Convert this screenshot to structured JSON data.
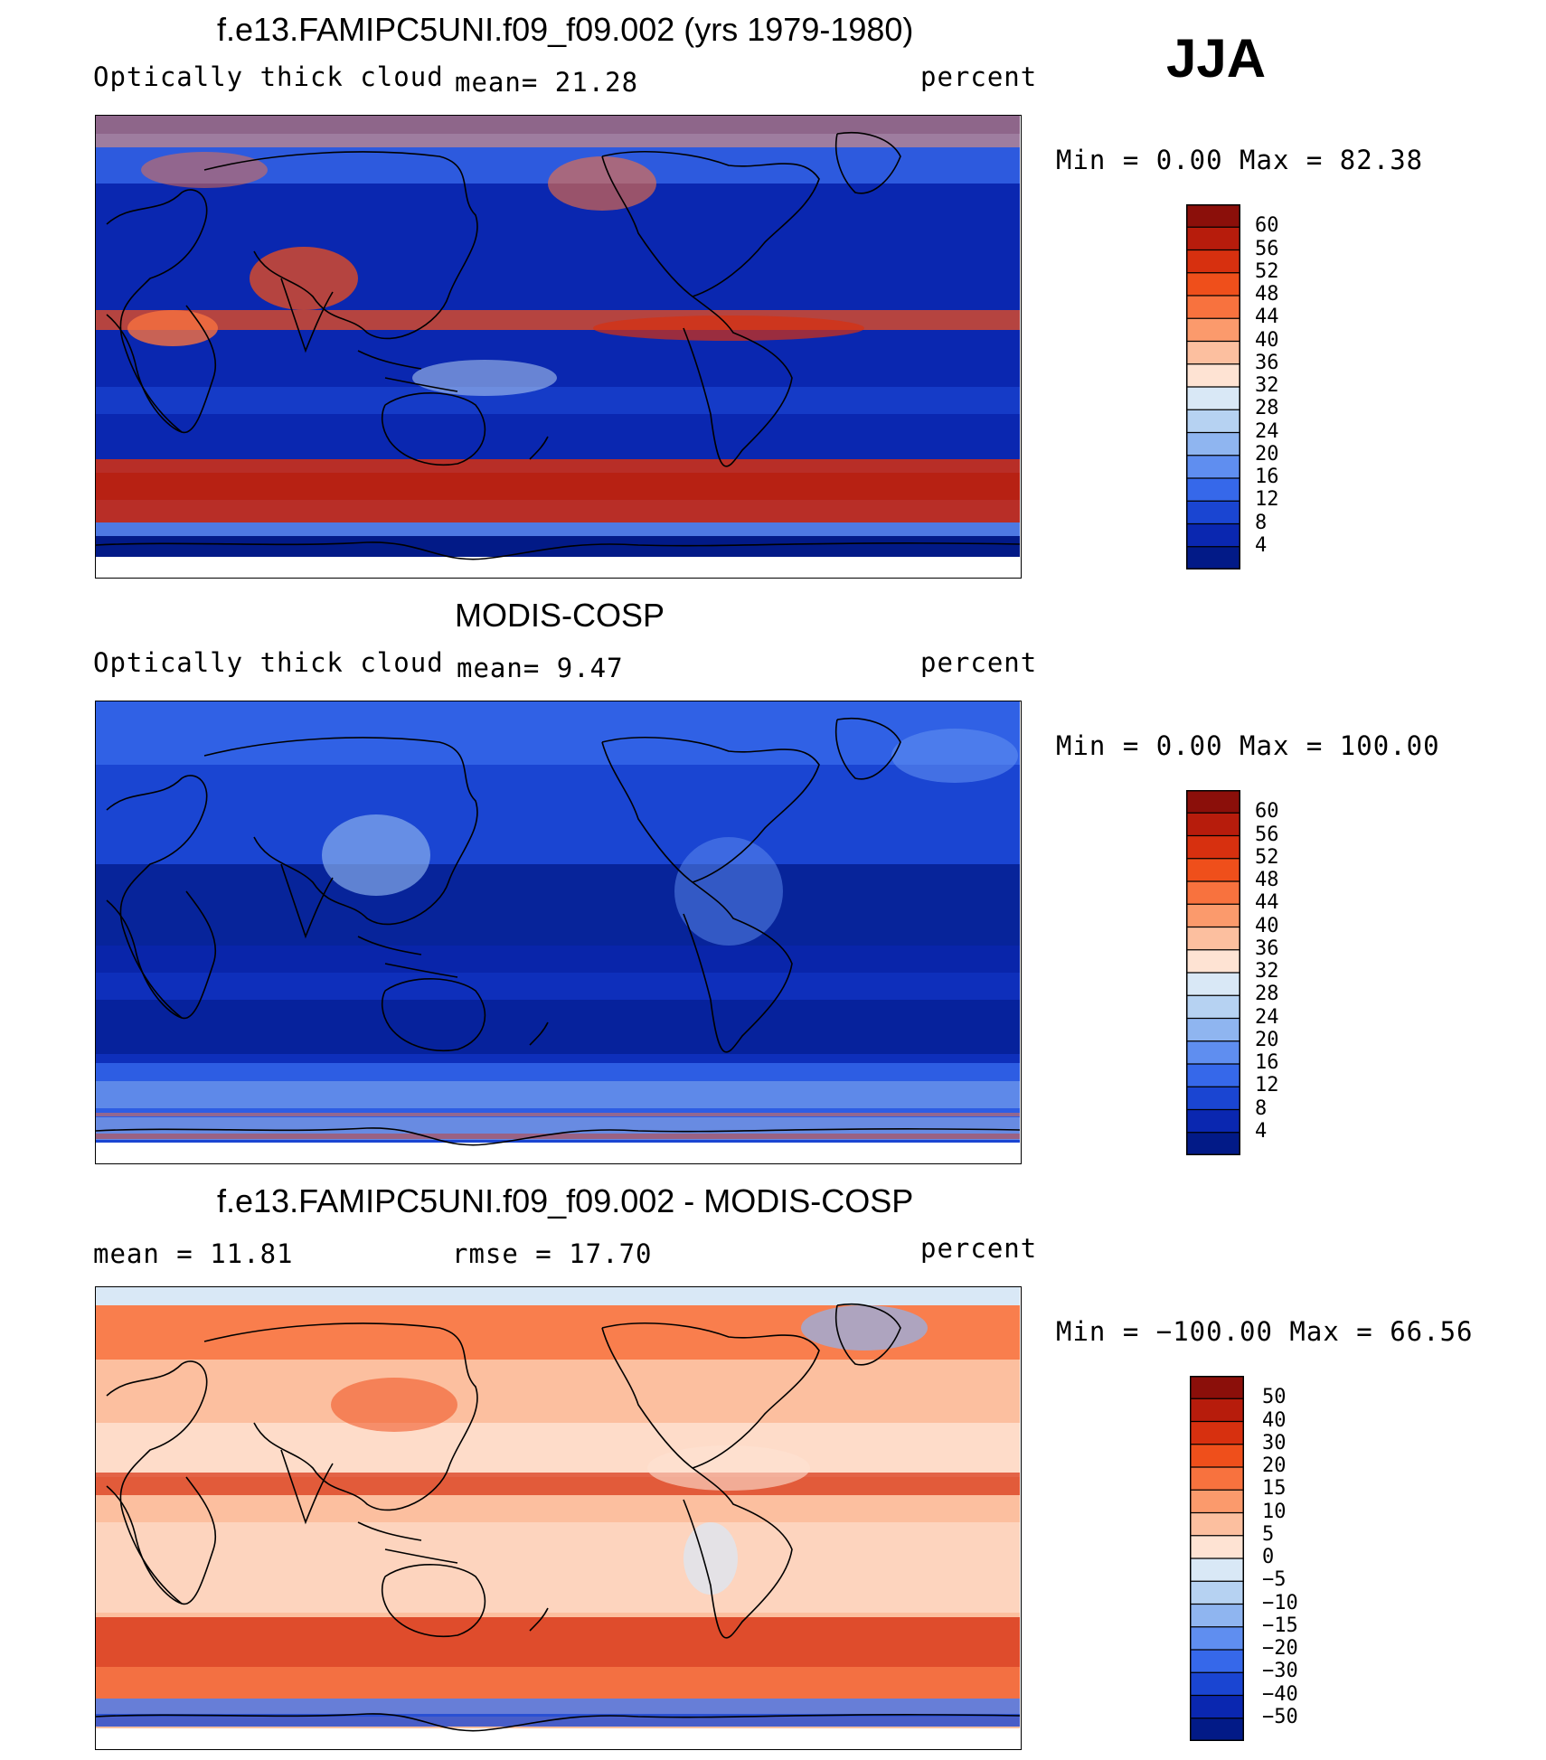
{
  "season": "JJA",
  "panels": [
    {
      "title": "f.e13.FAMIPC5UNI.f09_f09.002 (yrs 1979-1980)",
      "left_label": "Optically thick cloud",
      "mid_label": "mean=   21.28",
      "right_label": "percent",
      "minmax": "Min =    0.00 Max =   82.38",
      "colorbar": {
        "ticks": [
          "60",
          "56",
          "52",
          "48",
          "44",
          "40",
          "36",
          "32",
          "28",
          "24",
          "20",
          "16",
          "12",
          "8",
          "4"
        ],
        "colors": [
          "#8b0f0a",
          "#b71c0c",
          "#d7300f",
          "#ef4f1b",
          "#f8723e",
          "#fb9a6c",
          "#fcbf9f",
          "#fee3d3",
          "#d9e8f6",
          "#b6d2f2",
          "#8fb5f0",
          "#5f8ef0",
          "#3668ea",
          "#1a45d2",
          "#0a27b0",
          "#021a87"
        ]
      },
      "map_style": "model"
    },
    {
      "title": "MODIS-COSP",
      "left_label": "Optically thick cloud",
      "mid_label": "mean=    9.47",
      "right_label": "percent",
      "minmax": "Min =    0.00 Max = 100.00",
      "colorbar": {
        "ticks": [
          "60",
          "56",
          "52",
          "48",
          "44",
          "40",
          "36",
          "32",
          "28",
          "24",
          "20",
          "16",
          "12",
          "8",
          "4"
        ],
        "colors": [
          "#8b0f0a",
          "#b71c0c",
          "#d7300f",
          "#ef4f1b",
          "#f8723e",
          "#fb9a6c",
          "#fcbf9f",
          "#fee3d3",
          "#d9e8f6",
          "#b6d2f2",
          "#8fb5f0",
          "#5f8ef0",
          "#3668ea",
          "#1a45d2",
          "#0a27b0",
          "#021a87"
        ]
      },
      "map_style": "obs"
    },
    {
      "title": "f.e13.FAMIPC5UNI.f09_f09.002 - MODIS-COSP",
      "left_label": "mean =   11.81",
      "mid_label": "rmse =   17.70",
      "right_label": "percent",
      "minmax": "Min = −100.00 Max =   66.56",
      "colorbar": {
        "ticks": [
          "50",
          "40",
          "30",
          "20",
          "15",
          "10",
          "5",
          "0",
          "−5",
          "−10",
          "−15",
          "−20",
          "−30",
          "−40",
          "−50"
        ],
        "colors": [
          "#8b0f0a",
          "#b71c0c",
          "#d7300f",
          "#ef4f1b",
          "#f8723e",
          "#fb9a6c",
          "#fcbf9f",
          "#fee3d3",
          "#d9e8f6",
          "#b6d2f2",
          "#8fb5f0",
          "#5f8ef0",
          "#3668ea",
          "#1a45d2",
          "#0a27b0",
          "#021a87"
        ]
      },
      "map_style": "diff"
    }
  ]
}
